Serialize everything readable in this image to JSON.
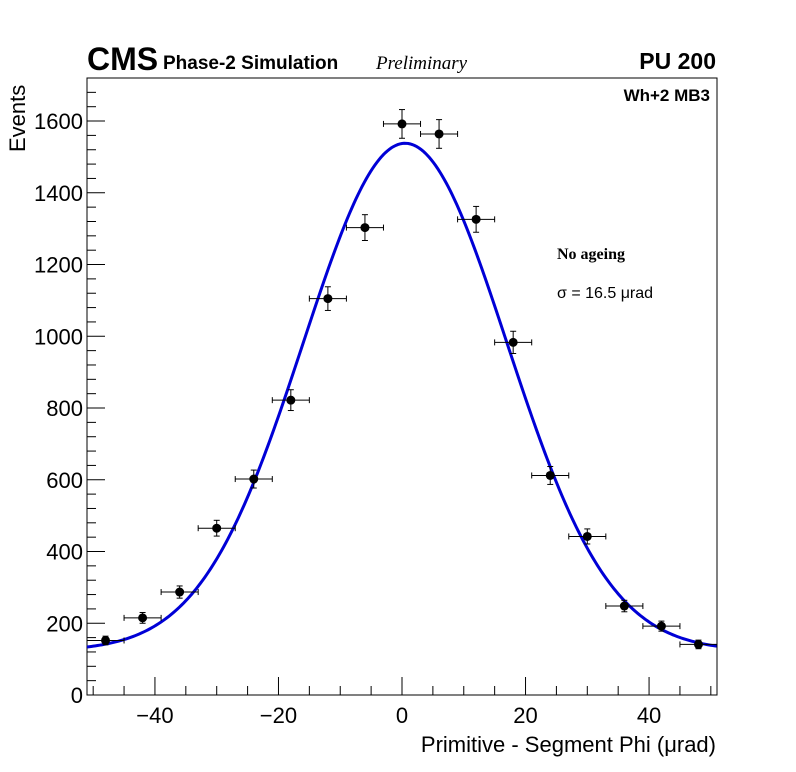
{
  "header": {
    "experiment": "CMS",
    "subtitle": "Phase-2 Simulation",
    "status": "Preliminary",
    "pileup": "PU 200"
  },
  "labels": {
    "region": "Wh+2 MB3",
    "ageing": "No ageing",
    "sigma": "σ = 16.5  μrad"
  },
  "chart_data": {
    "type": "scatter",
    "title": "",
    "xlabel": "Primitive - Segment Phi (μrad)",
    "ylabel": "Events",
    "xlim": [
      -51,
      51
    ],
    "ylim": [
      0,
      1720
    ],
    "xticks": [
      -40,
      -20,
      0,
      20,
      40
    ],
    "xtick_labels": [
      "−40",
      "−20",
      "0",
      "20",
      "40"
    ],
    "yticks": [
      0,
      200,
      400,
      600,
      800,
      1000,
      1200,
      1400,
      1600
    ],
    "ytick_labels": [
      "0",
      "200",
      "400",
      "600",
      "800",
      "1000",
      "1200",
      "1400",
      "1600"
    ],
    "grid": false,
    "series": [
      {
        "name": "Simulation",
        "color": "#000000",
        "x_half_width": 3,
        "x": [
          -48,
          -42,
          -36,
          -30,
          -24,
          -18,
          -12,
          -6,
          0,
          6,
          12,
          18,
          24,
          30,
          36,
          42,
          48
        ],
        "values": [
          152,
          215,
          287,
          465,
          602,
          822,
          1105,
          1303,
          1592,
          1564,
          1326,
          983,
          612,
          442,
          248,
          192,
          141
        ],
        "errors": [
          12,
          15,
          17,
          22,
          25,
          29,
          33,
          36,
          40,
          40,
          36,
          31,
          25,
          21,
          16,
          14,
          12
        ]
      },
      {
        "name": "Gaussian fit",
        "type": "line",
        "color": "#0000d6",
        "function": "gaussian_plus_constant",
        "amplitude": 1415,
        "mean": 0.5,
        "sigma": 16.5,
        "constant": 123
      }
    ]
  }
}
